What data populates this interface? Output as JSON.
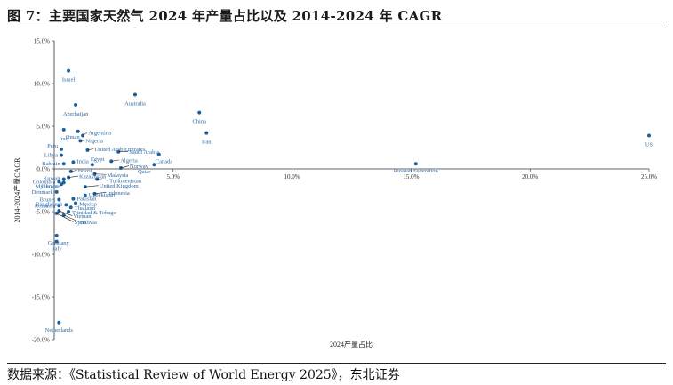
{
  "figure": {
    "title": "图 7：主要国家天然气 2024 年产量占比以及 2014-2024 年 CAGR",
    "source": "数据来源：《Statistical Review of World Energy 2025》，东北证券"
  },
  "colors": {
    "point": "#1f5f9a",
    "label": "#2e6aa6",
    "axis": "#333333"
  },
  "chart_data": {
    "type": "scatter",
    "xlabel": "2024产量占比",
    "ylabel": "2014-2024产量CAGR",
    "xlim": [
      0,
      25
    ],
    "ylim": [
      -20,
      15
    ],
    "x_ticks": [
      "0.0%",
      "5.0%",
      "10.0%",
      "15.0%",
      "20.0%",
      "25.0%"
    ],
    "y_ticks": [
      "15.0%",
      "10.0%",
      "5.0%",
      "0.0%",
      "-5.0%",
      "-10.0%",
      "-15.0%",
      "-20.0%"
    ],
    "grid": false,
    "points": [
      {
        "name": "Israel",
        "x": 0.6,
        "y": 11.5
      },
      {
        "name": "Australia",
        "x": 3.4,
        "y": 8.7
      },
      {
        "name": "Azerbaijan",
        "x": 0.9,
        "y": 7.5
      },
      {
        "name": "China",
        "x": 6.1,
        "y": 6.6
      },
      {
        "name": "Iraq",
        "x": 0.4,
        "y": 4.6
      },
      {
        "name": "Oman",
        "x": 1.0,
        "y": 4.4
      },
      {
        "name": "Iran",
        "x": 6.4,
        "y": 4.2
      },
      {
        "name": "US",
        "x": 25.0,
        "y": 3.9
      },
      {
        "name": "Argentina",
        "x": 1.2,
        "y": 3.9
      },
      {
        "name": "Nigeria",
        "x": 1.1,
        "y": 3.3
      },
      {
        "name": "Peru",
        "x": 0.3,
        "y": 2.3
      },
      {
        "name": "United Arab Emirates",
        "x": 1.4,
        "y": 2.2
      },
      {
        "name": "Libya",
        "x": 0.3,
        "y": 1.6
      },
      {
        "name": "Saudi Arabia",
        "x": 2.7,
        "y": 2.0
      },
      {
        "name": "Canada",
        "x": 4.4,
        "y": 1.7
      },
      {
        "name": "Qatar",
        "x": 4.2,
        "y": 0.5
      },
      {
        "name": "Bahrain",
        "x": 0.4,
        "y": 0.6
      },
      {
        "name": "India",
        "x": 0.8,
        "y": 0.8
      },
      {
        "name": "Algeria",
        "x": 2.4,
        "y": 0.9
      },
      {
        "name": "Norway",
        "x": 2.8,
        "y": 0.1
      },
      {
        "name": "Russian Federation",
        "x": 15.2,
        "y": 0.6
      },
      {
        "name": "Egypt",
        "x": 1.6,
        "y": 0.5
      },
      {
        "name": "Brazil",
        "x": 0.7,
        "y": -0.3
      },
      {
        "name": "Malaysia",
        "x": 1.7,
        "y": -0.6
      },
      {
        "name": "Turkmenistan",
        "x": 1.8,
        "y": -1.2
      },
      {
        "name": "Kazakhstan",
        "x": 0.6,
        "y": -1.0
      },
      {
        "name": "Kuwait",
        "x": 0.4,
        "y": -1.2
      },
      {
        "name": "Colombia",
        "x": 0.2,
        "y": -1.5
      },
      {
        "name": "Myanmar",
        "x": 0.3,
        "y": -1.8
      },
      {
        "name": "Ukraine",
        "x": 0.4,
        "y": -1.6
      },
      {
        "name": "United Kingdom",
        "x": 1.3,
        "y": -2.1
      },
      {
        "name": "Indonesia",
        "x": 1.7,
        "y": -2.9
      },
      {
        "name": "Uzbekistan",
        "x": 1.3,
        "y": -3.1
      },
      {
        "name": "Denmark",
        "x": 0.1,
        "y": -2.7
      },
      {
        "name": "Pakistan",
        "x": 0.8,
        "y": -3.5
      },
      {
        "name": "Mexico",
        "x": 0.9,
        "y": -4.0
      },
      {
        "name": "Bangladesh",
        "x": 0.5,
        "y": -4.2
      },
      {
        "name": "Thailand",
        "x": 0.7,
        "y": -4.5
      },
      {
        "name": "Brunei",
        "x": 0.2,
        "y": -3.6
      },
      {
        "name": "Romania",
        "x": 0.2,
        "y": -4.3
      },
      {
        "name": "Trinidad & Tobago",
        "x": 0.6,
        "y": -5.0
      },
      {
        "name": "Vietnam",
        "x": 0.2,
        "y": -4.9
      },
      {
        "name": "Bolivia",
        "x": 0.4,
        "y": -5.4
      },
      {
        "name": "Syria",
        "x": 0.1,
        "y": -5.2
      },
      {
        "name": "Germany",
        "x": 0.1,
        "y": -7.8
      },
      {
        "name": "Italy",
        "x": 0.1,
        "y": -8.5
      },
      {
        "name": "Netherlands",
        "x": 0.2,
        "y": -18.0
      }
    ]
  }
}
